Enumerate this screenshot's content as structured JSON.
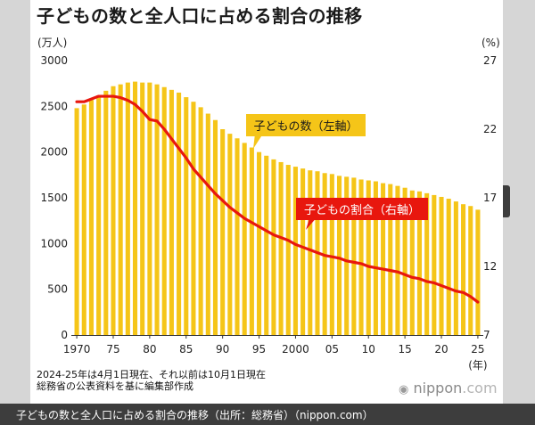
{
  "title": "子どもの数と全人口に占める割合の推移",
  "caption": "子どもの数と全人口に占める割合の推移（出所：総務省）（nippon.com）",
  "notes": [
    "2024-25年は4月1日現在、それ以前は10月1日現在",
    "総務省の公表資料を基に編集部作成"
  ],
  "logo": {
    "name": "nippon",
    "dot": ".",
    "suffix": "com"
  },
  "colors": {
    "bar": "#f5c518",
    "line": "#e8170e",
    "label_bar": "#f5c518",
    "label_line": "#e8170e"
  },
  "chart_data": {
    "type": "bar",
    "x_unit": "(年)",
    "x_tick_labels": [
      "1970",
      "75",
      "80",
      "85",
      "90",
      "95",
      "2000",
      "05",
      "10",
      "15",
      "20",
      "25"
    ],
    "x_ticks": [
      1970,
      1975,
      1980,
      1985,
      1990,
      1995,
      2000,
      2005,
      2010,
      2015,
      2020,
      2025
    ],
    "y_left_unit": "(万人)",
    "y_left_ticks": [
      0,
      500,
      1000,
      1500,
      2000,
      2500,
      3000
    ],
    "y_left_range": [
      0,
      3000
    ],
    "y_right_unit": "(%)",
    "y_right_ticks": [
      7,
      12,
      17,
      22,
      27
    ],
    "y_right_range": [
      7,
      27
    ],
    "series": [
      {
        "name": "子どもの数（左軸）",
        "type": "bar",
        "axis": "left",
        "x": [
          1970,
          1971,
          1972,
          1973,
          1974,
          1975,
          1976,
          1977,
          1978,
          1979,
          1980,
          1981,
          1982,
          1983,
          1984,
          1985,
          1986,
          1987,
          1988,
          1989,
          1990,
          1991,
          1992,
          1993,
          1994,
          1995,
          1996,
          1997,
          1998,
          1999,
          2000,
          2001,
          2002,
          2003,
          2004,
          2005,
          2006,
          2007,
          2008,
          2009,
          2010,
          2011,
          2012,
          2013,
          2014,
          2015,
          2016,
          2017,
          2018,
          2019,
          2020,
          2021,
          2022,
          2023,
          2024,
          2025
        ],
        "values": [
          2480,
          2520,
          2570,
          2620,
          2670,
          2720,
          2740,
          2760,
          2770,
          2760,
          2760,
          2740,
          2710,
          2680,
          2650,
          2600,
          2550,
          2490,
          2420,
          2350,
          2250,
          2200,
          2150,
          2100,
          2050,
          2000,
          1960,
          1920,
          1890,
          1860,
          1840,
          1820,
          1800,
          1790,
          1770,
          1760,
          1740,
          1730,
          1720,
          1700,
          1690,
          1680,
          1660,
          1650,
          1630,
          1610,
          1580,
          1570,
          1550,
          1530,
          1510,
          1490,
          1460,
          1430,
          1410,
          1370
        ]
      },
      {
        "name": "子どもの割合（右軸）",
        "type": "line",
        "axis": "right",
        "x": [
          1970,
          1971,
          1972,
          1973,
          1974,
          1975,
          1976,
          1977,
          1978,
          1979,
          1980,
          1981,
          1982,
          1983,
          1984,
          1985,
          1986,
          1987,
          1988,
          1989,
          1990,
          1991,
          1992,
          1993,
          1994,
          1995,
          1996,
          1997,
          1998,
          1999,
          2000,
          2001,
          2002,
          2003,
          2004,
          2005,
          2006,
          2007,
          2008,
          2009,
          2010,
          2011,
          2012,
          2013,
          2014,
          2015,
          2016,
          2017,
          2018,
          2019,
          2020,
          2021,
          2022,
          2023,
          2024,
          2025
        ],
        "values": [
          24.0,
          24.0,
          24.2,
          24.4,
          24.4,
          24.4,
          24.3,
          24.1,
          23.8,
          23.3,
          22.7,
          22.6,
          22.0,
          21.3,
          20.6,
          19.9,
          19.1,
          18.5,
          17.9,
          17.3,
          16.8,
          16.3,
          15.9,
          15.5,
          15.2,
          14.9,
          14.6,
          14.3,
          14.1,
          13.9,
          13.6,
          13.4,
          13.2,
          13.0,
          12.8,
          12.7,
          12.6,
          12.4,
          12.3,
          12.2,
          12.0,
          11.9,
          11.8,
          11.7,
          11.6,
          11.4,
          11.2,
          11.1,
          10.9,
          10.8,
          10.6,
          10.4,
          10.2,
          10.1,
          9.8,
          9.4
        ]
      }
    ]
  }
}
